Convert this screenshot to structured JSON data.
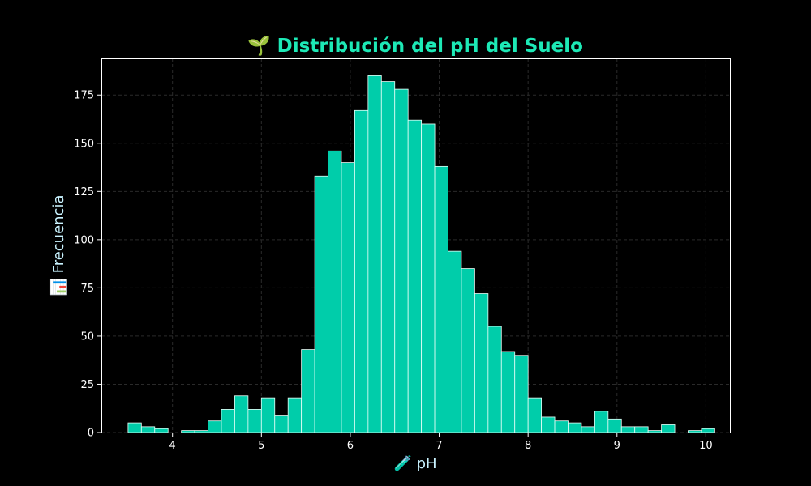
{
  "chart_data": {
    "type": "bar",
    "subtype": "histogram",
    "title": "🌱 Distribución del pH del Suelo",
    "xlabel": "🧪 pH",
    "ylabel": "📊 Frecuencia",
    "xlim": [
      3.2,
      10.27
    ],
    "ylim": [
      0,
      194
    ],
    "xticks": [
      4,
      5,
      6,
      7,
      8,
      9,
      10
    ],
    "yticks": [
      0,
      25,
      50,
      75,
      100,
      125,
      150,
      175
    ],
    "bin_start": 3.5,
    "bin_width": 0.15,
    "values": [
      5,
      3,
      2,
      0,
      1,
      1,
      6,
      12,
      19,
      12,
      18,
      9,
      18,
      43,
      133,
      146,
      140,
      167,
      185,
      182,
      178,
      162,
      160,
      138,
      94,
      85,
      72,
      55,
      42,
      40,
      18,
      8,
      6,
      5,
      3,
      11,
      7,
      3,
      3,
      1,
      4,
      0,
      1,
      2
    ],
    "grid": true,
    "colors": {
      "bar_fill": "#00cdaa",
      "bar_edge": "#e8fff8",
      "background": "#000000",
      "title": "#1de9b6",
      "axis_label": "#c9f3ff",
      "tick_label": "#ffffff",
      "spine": "#ffffff",
      "grid": "#2a2a2a"
    }
  }
}
